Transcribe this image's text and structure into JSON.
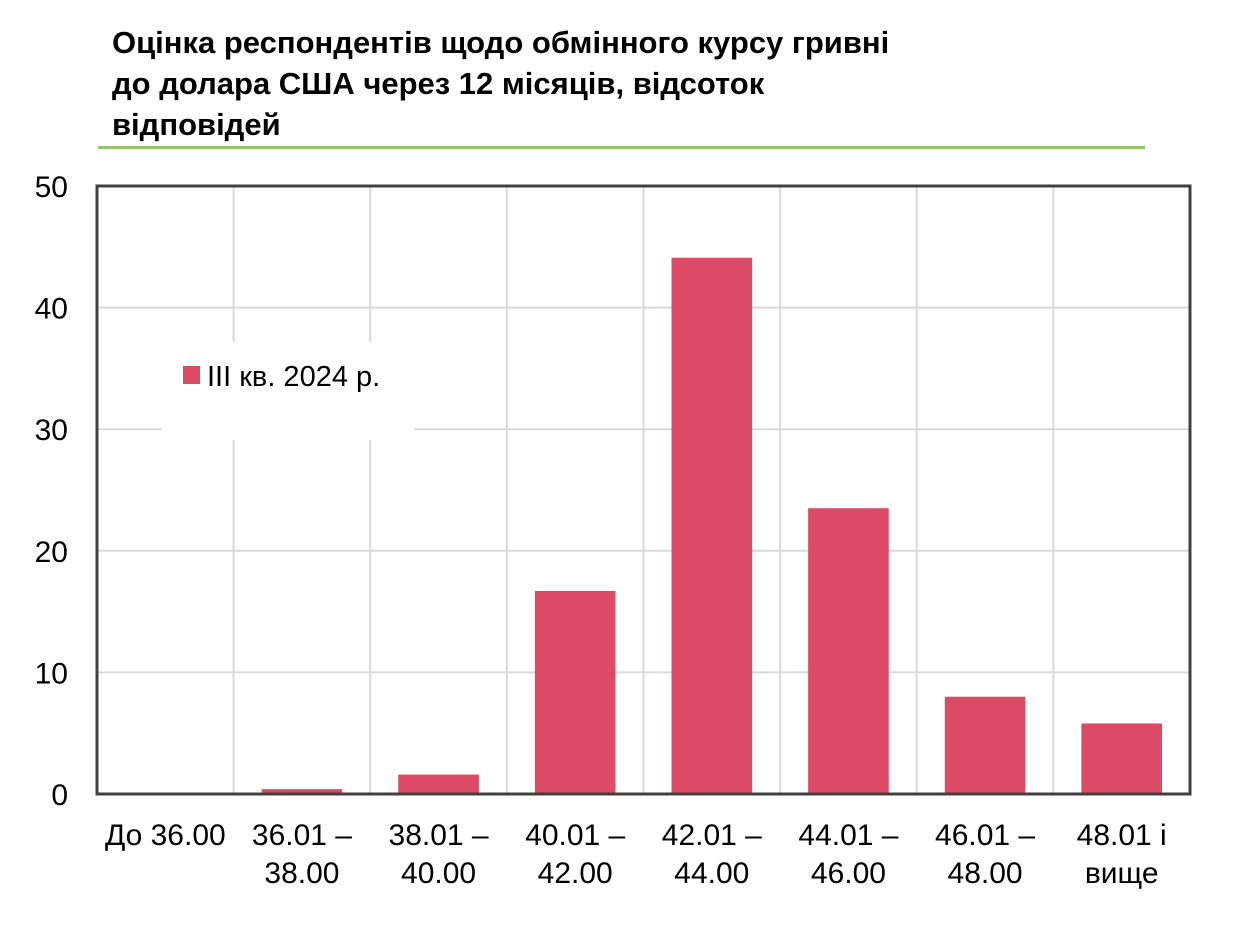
{
  "chart_data": {
    "type": "bar",
    "title_lines": [
      "Оцінка респондентів щодо обмінного курсу гривні",
      "до долара США через 12 місяців, відсоток",
      "відповідей"
    ],
    "categories": [
      [
        "До 36.00"
      ],
      [
        "36.01 –",
        "38.00"
      ],
      [
        "38.01 –",
        "40.00"
      ],
      [
        "40.01 –",
        "42.00"
      ],
      [
        "42.01 –",
        "44.00"
      ],
      [
        "44.01 –",
        "46.00"
      ],
      [
        "46.01 –",
        "48.00"
      ],
      [
        "48.01 і",
        "вище"
      ]
    ],
    "series": [
      {
        "name": "ІІІ кв. 2024 р.",
        "color": "#db4b66",
        "values": [
          0,
          0.4,
          1.6,
          16.7,
          44.1,
          23.5,
          8.0,
          5.8
        ]
      }
    ],
    "ylim": [
      0,
      50
    ],
    "yticks": [
      0,
      10,
      20,
      30,
      40,
      50
    ],
    "grid": true,
    "legend_position": "top-left"
  }
}
